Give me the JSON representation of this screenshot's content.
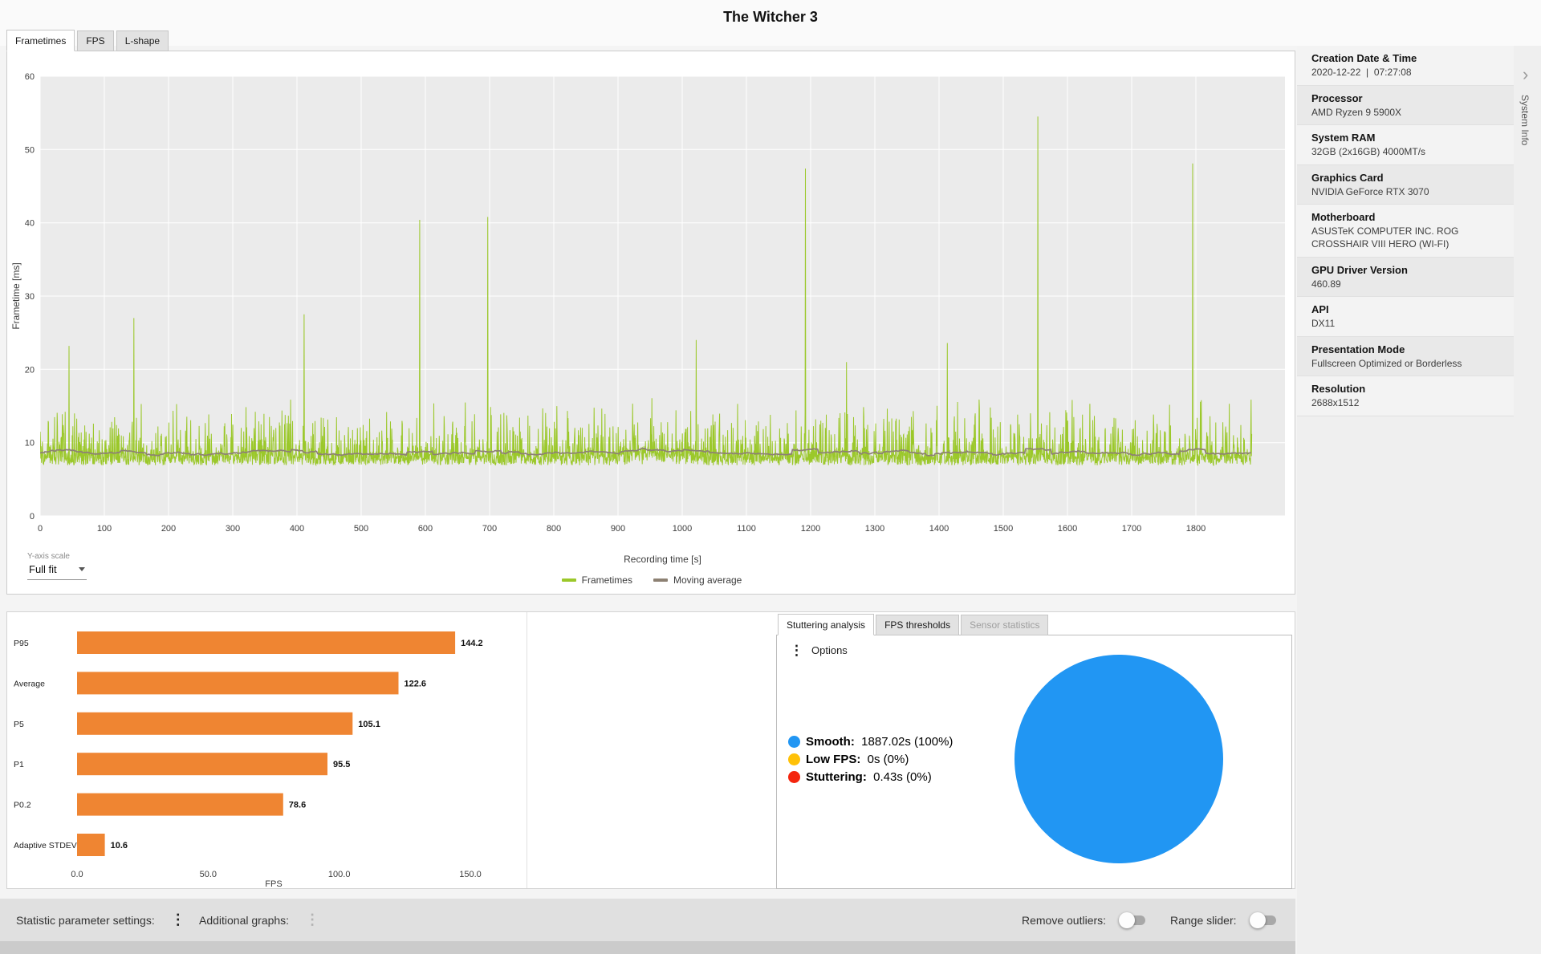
{
  "title": "The Witcher 3",
  "icons": {
    "kebab_menu": "⋮",
    "collapse_chevron": "›"
  },
  "main_tabs": {
    "items": [
      {
        "label": "Frametimes",
        "active": true
      },
      {
        "label": "FPS",
        "active": false
      },
      {
        "label": "L-shape",
        "active": false
      }
    ]
  },
  "y_axis_scale": {
    "label": "Y-axis scale",
    "value": "Full fit"
  },
  "chart_data": [
    {
      "type": "line",
      "name": "frametime-graph",
      "xlabel": "Recording time [s]",
      "ylabel": "Frametime [ms]",
      "xlim": [
        0,
        1887
      ],
      "ylim": [
        0,
        60
      ],
      "xticks": [
        0,
        100,
        200,
        300,
        400,
        500,
        600,
        700,
        800,
        900,
        1000,
        1100,
        1200,
        1300,
        1400,
        1500,
        1600,
        1700,
        1800
      ],
      "yticks": [
        0,
        10,
        20,
        30,
        40,
        50,
        60
      ],
      "grid": true,
      "plot_background": "#ebebeb",
      "series": [
        {
          "name": "Frametimes",
          "color": "#9bc82a"
        },
        {
          "name": "Moving average",
          "color": "#8d8173"
        }
      ],
      "noise": {
        "seed": 1337,
        "samples": 3774,
        "base_min": 6.9,
        "base_max": 8.6,
        "spike_chance": 0.4,
        "spike_max": 8.2,
        "bumps": [
          {
            "t0": 900,
            "t1": 1005,
            "add": 1.1
          }
        ]
      },
      "spikes": [
        {
          "t": 45,
          "v": 23.2
        },
        {
          "t": 146,
          "v": 27.0
        },
        {
          "t": 411,
          "v": 27.5
        },
        {
          "t": 591,
          "v": 40.4
        },
        {
          "t": 697,
          "v": 40.8
        },
        {
          "t": 1022,
          "v": 24.0
        },
        {
          "t": 1192,
          "v": 47.4
        },
        {
          "t": 1256,
          "v": 21.0
        },
        {
          "t": 1413,
          "v": 23.6
        },
        {
          "t": 1554,
          "v": 54.5
        },
        {
          "t": 1795,
          "v": 48.1
        }
      ],
      "moving_average_window": 40
    },
    {
      "type": "bar",
      "name": "fps-percentiles",
      "categories": [
        "P95",
        "Average",
        "P5",
        "P1",
        "P0.2",
        "Adaptive STDEV"
      ],
      "values": [
        144.2,
        122.6,
        105.1,
        95.5,
        78.6,
        10.6
      ],
      "xlabel": "FPS",
      "xticks": [
        0,
        50,
        100,
        150
      ],
      "xlim": [
        0,
        165
      ],
      "bar_color": "#ef8532"
    },
    {
      "type": "pie",
      "name": "stuttering-share",
      "slices": [
        {
          "label": "Smooth",
          "time": "1887.02s",
          "percent_label": "(100%)",
          "value": 1887.02,
          "color": "#2196f3"
        },
        {
          "label": "Low FPS",
          "time": "0s",
          "percent_label": "(0%)",
          "value": 0,
          "color": "#ffc107"
        },
        {
          "label": "Stuttering",
          "time": "0.43s",
          "percent_label": "(0%)",
          "value": 0.43,
          "color": "#f4250e"
        }
      ]
    }
  ],
  "system_info": {
    "side_label": "System Info",
    "entries": [
      {
        "label": "Creation Date & Time",
        "value": "2020-12-22  |  07:27:08"
      },
      {
        "label": "Processor",
        "value": "AMD Ryzen 9 5900X"
      },
      {
        "label": "System RAM",
        "value": "32GB (2x16GB) 4000MT/s"
      },
      {
        "label": "Graphics Card",
        "value": "NVIDIA GeForce RTX 3070"
      },
      {
        "label": "Motherboard",
        "value": "ASUSTeK COMPUTER INC. ROG CROSSHAIR VIII HERO (WI-FI)"
      },
      {
        "label": "GPU Driver Version",
        "value": "460.89"
      },
      {
        "label": "API",
        "value": "DX11"
      },
      {
        "label": "Presentation Mode",
        "value": "Fullscreen Optimized or Borderless"
      },
      {
        "label": "Resolution",
        "value": "2688x1512"
      }
    ]
  },
  "analysis_panel": {
    "tabs": [
      {
        "label": "Stuttering analysis",
        "active": true,
        "disabled": false
      },
      {
        "label": "FPS thresholds",
        "active": false,
        "disabled": false
      },
      {
        "label": "Sensor statistics",
        "active": false,
        "disabled": true
      }
    ],
    "options_label": "Options"
  },
  "bottom_bar": {
    "statistic_settings_label": "Statistic parameter settings:",
    "additional_graphs_label": "Additional graphs:",
    "remove_outliers_label": "Remove outliers:",
    "range_slider_label": "Range slider:",
    "remove_outliers_on": false,
    "range_slider_on": false
  }
}
